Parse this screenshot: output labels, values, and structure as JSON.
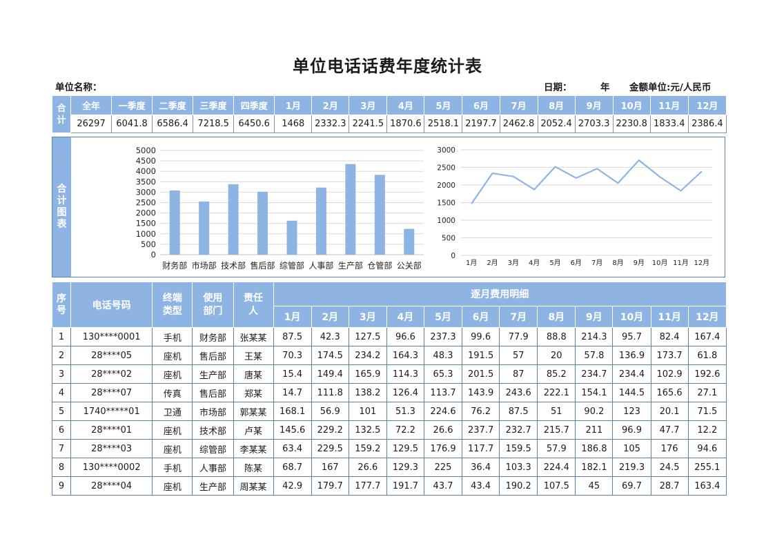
{
  "title": "单位电话话费年度统计表",
  "meta": {
    "unit_name_label": "单位名称：",
    "date_label": "日期：",
    "year_label": "年",
    "currency_label": "金额单位:元/人民币"
  },
  "summary": {
    "side_label": "合计",
    "headers": [
      "全年",
      "一季度",
      "二季度",
      "三季度",
      "四季度",
      "1月",
      "2月",
      "3月",
      "4月",
      "5月",
      "6月",
      "7月",
      "8月",
      "9月",
      "10月",
      "11月",
      "12月"
    ],
    "values": [
      "26297",
      "6041.8",
      "6586.4",
      "7218.5",
      "6450.6",
      "1468",
      "2332.3",
      "2241.5",
      "1870.6",
      "2518.1",
      "2197.7",
      "2462.8",
      "2052.4",
      "2703.3",
      "2230.8",
      "1833.4",
      "2386.4"
    ]
  },
  "chart_side_label": "合计图表",
  "colors": {
    "accent": "#8eb4e3",
    "border": "#5b7db0"
  },
  "chart_data": [
    {
      "type": "bar",
      "categories": [
        "财务部",
        "市场部",
        "技术部",
        "售后部",
        "综管部",
        "人事部",
        "生产部",
        "仓管部",
        "公关部"
      ],
      "values": [
        3080,
        2550,
        3380,
        3020,
        1630,
        3220,
        4350,
        3830,
        1240
      ],
      "ylim": [
        0,
        5000
      ],
      "yticks": [
        0,
        500,
        1000,
        1500,
        2000,
        2500,
        3000,
        3500,
        4000,
        4500,
        5000
      ],
      "grid": true
    },
    {
      "type": "line",
      "categories": [
        "1月",
        "2月",
        "3月",
        "4月",
        "5月",
        "6月",
        "7月",
        "8月",
        "9月",
        "10月",
        "11月",
        "12月"
      ],
      "values": [
        1468,
        2332.3,
        2241.5,
        1870.6,
        2518.1,
        2197.7,
        2462.8,
        2052.4,
        2703.3,
        2230.8,
        1833.4,
        2386.4
      ],
      "ylim": [
        0,
        3000
      ],
      "yticks": [
        0,
        500,
        1000,
        1500,
        2000,
        2500,
        3000
      ],
      "grid": true
    }
  ],
  "detail": {
    "headers": {
      "seq": "序号",
      "phone": "电话号码",
      "terminal": "终端类型",
      "dept": "使用部门",
      "owner": "责任人",
      "monthly": "逐月费用明细",
      "months": [
        "1月",
        "2月",
        "3月",
        "4月",
        "5月",
        "6月",
        "7月",
        "8月",
        "9月",
        "10月",
        "11月",
        "12月"
      ]
    },
    "rows": [
      {
        "seq": "1",
        "phone": "130****0001",
        "terminal": "手机",
        "dept": "财务部",
        "owner": "张某某",
        "m": [
          "87.5",
          "42.3",
          "127.5",
          "96.6",
          "237.3",
          "99.6",
          "77.9",
          "88.8",
          "214.3",
          "95.7",
          "82.4",
          "167.4"
        ]
      },
      {
        "seq": "2",
        "phone": "28****05",
        "terminal": "座机",
        "dept": "售后部",
        "owner": "王某",
        "m": [
          "70.3",
          "174.5",
          "234.2",
          "164.3",
          "48.3",
          "191.5",
          "57",
          "20",
          "57.8",
          "136.9",
          "173.7",
          "61.8"
        ]
      },
      {
        "seq": "3",
        "phone": "28****02",
        "terminal": "座机",
        "dept": "生产部",
        "owner": "唐某",
        "m": [
          "15.4",
          "149.4",
          "165.9",
          "114.3",
          "65.3",
          "201.5",
          "87",
          "85.2",
          "234.7",
          "234.4",
          "102.9",
          "192.6"
        ]
      },
      {
        "seq": "4",
        "phone": "28****07",
        "terminal": "传真",
        "dept": "售后部",
        "owner": "郑某",
        "m": [
          "14.7",
          "111.8",
          "138.2",
          "126.4",
          "113.7",
          "143.9",
          "243.6",
          "222.1",
          "154.1",
          "144.5",
          "165.6",
          "27.1"
        ]
      },
      {
        "seq": "5",
        "phone": "1740*****01",
        "terminal": "卫通",
        "dept": "市场部",
        "owner": "郭某某",
        "m": [
          "168.1",
          "56.9",
          "101",
          "51.3",
          "224.6",
          "76.2",
          "87.5",
          "51",
          "90.2",
          "123",
          "20.1",
          "71.5"
        ]
      },
      {
        "seq": "6",
        "phone": "28****01",
        "terminal": "座机",
        "dept": "技术部",
        "owner": "卢某",
        "m": [
          "145.6",
          "229.2",
          "132.5",
          "72.2",
          "26.6",
          "237.7",
          "232.7",
          "215.7",
          "211",
          "96.9",
          "47.7",
          "12.2"
        ]
      },
      {
        "seq": "7",
        "phone": "28****03",
        "terminal": "座机",
        "dept": "综管部",
        "owner": "李某某",
        "m": [
          "63.4",
          "229.5",
          "159.2",
          "129.5",
          "176.9",
          "117.7",
          "159.5",
          "57.9",
          "186.8",
          "105",
          "176",
          "94.6"
        ]
      },
      {
        "seq": "8",
        "phone": "130****0002",
        "terminal": "手机",
        "dept": "人事部",
        "owner": "陈某",
        "m": [
          "68.7",
          "167",
          "26.6",
          "129.3",
          "225",
          "36.4",
          "103.3",
          "224.4",
          "182.1",
          "219.3",
          "24.5",
          "255.1"
        ]
      },
      {
        "seq": "9",
        "phone": "28****04",
        "terminal": "座机",
        "dept": "生产部",
        "owner": "周某某",
        "m": [
          "42.9",
          "179.7",
          "177.7",
          "191.7",
          "43.7",
          "43.4",
          "190.2",
          "107.5",
          "45",
          "69.7",
          "28.7",
          "163.4"
        ]
      }
    ]
  }
}
